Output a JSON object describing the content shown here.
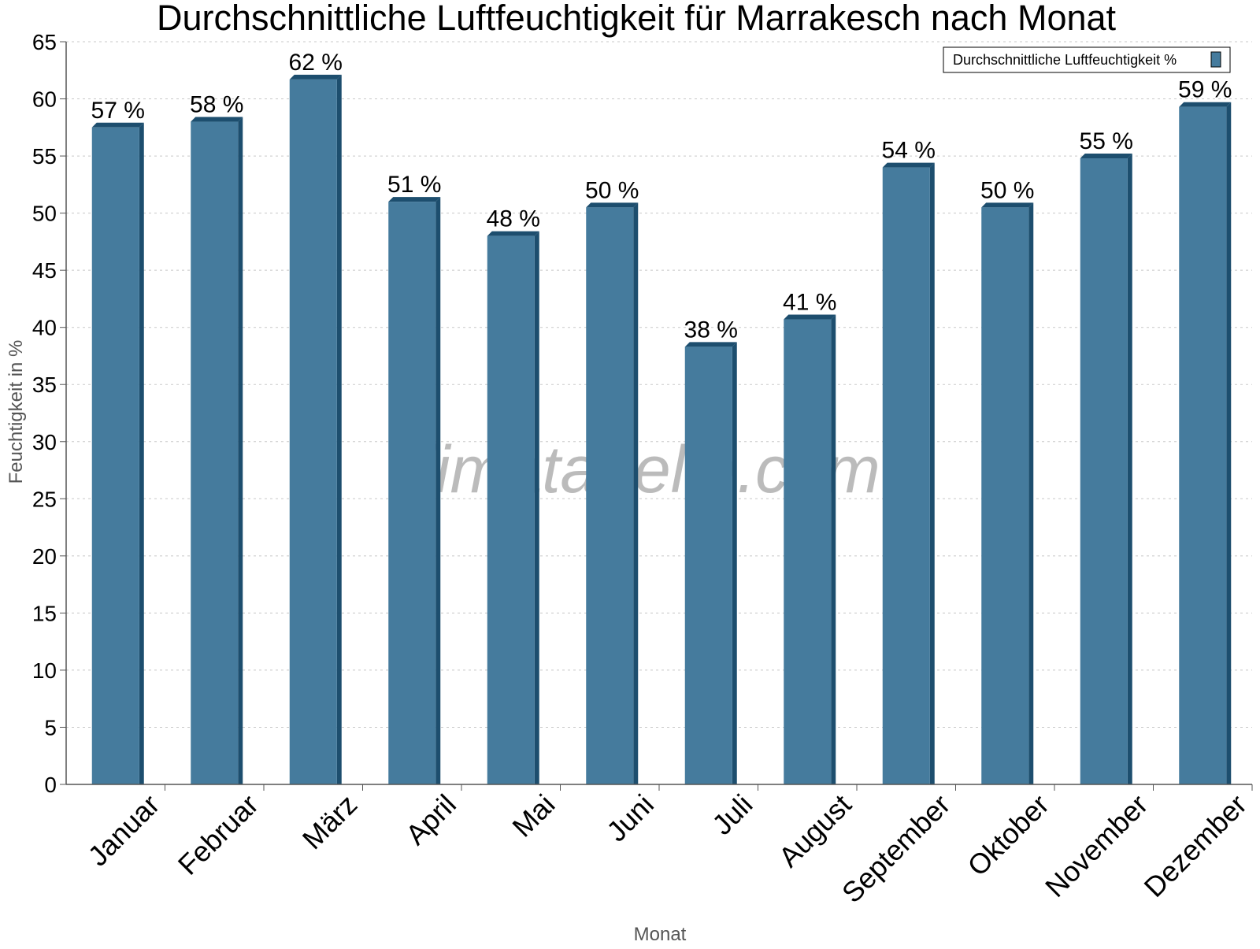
{
  "chart_data": {
    "type": "bar",
    "title": "Durchschnittliche Luftfeuchtigkeit für Marrakesch nach Monat",
    "xlabel": "Monat",
    "ylabel": "Feuchtigkeit in %",
    "categories": [
      "Januar",
      "Februar",
      "März",
      "April",
      "Mai",
      "Juni",
      "Juli",
      "August",
      "September",
      "Oktober",
      "November",
      "Dezember"
    ],
    "series": [
      {
        "name": "Durchschnittliche Luftfeuchtigkeit %",
        "values": [
          57.5,
          58,
          61.7,
          51,
          48,
          50.5,
          38.3,
          40.7,
          54,
          50.5,
          54.8,
          59.3
        ],
        "labels": [
          "57 %",
          "58 %",
          "62 %",
          "51 %",
          "48 %",
          "50 %",
          "38 %",
          "41 %",
          "54 %",
          "50 %",
          "55 %",
          "59 %"
        ]
      }
    ],
    "ylim": [
      0,
      65
    ],
    "ytick_step": 5,
    "grid": true,
    "legend_position": "top-right",
    "watermark": "klimatabelle.com",
    "colors": {
      "bar": "#457b9d",
      "bar_dark": "#1d4e6e",
      "grid": "#c8c8c8",
      "axis": "#555555"
    }
  }
}
